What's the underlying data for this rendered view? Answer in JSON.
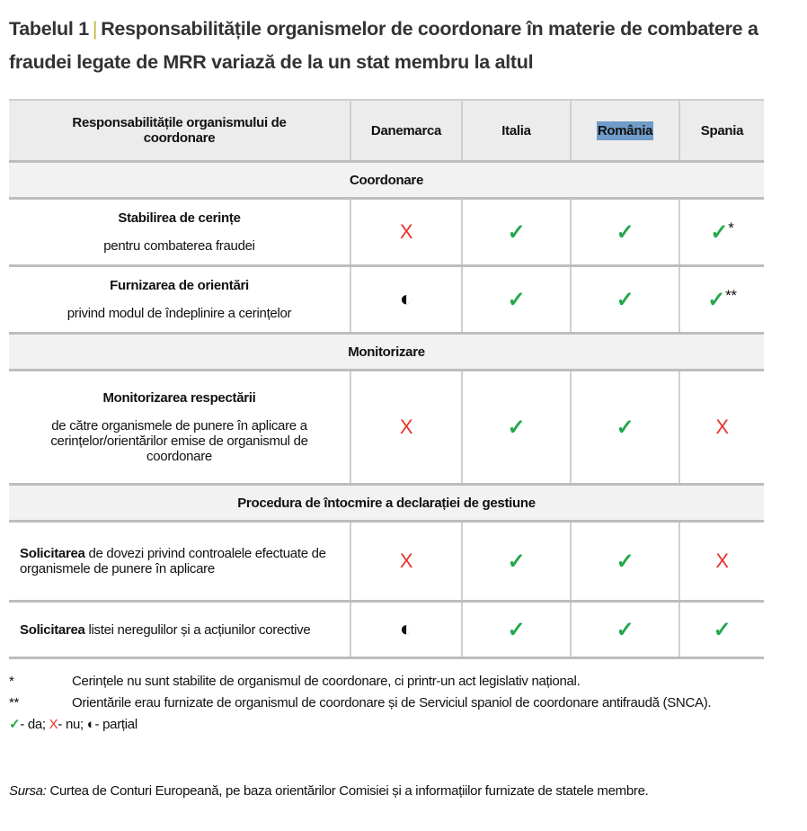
{
  "title": {
    "label": "Tabelul 1",
    "separator": "|",
    "text": "Responsabilitățile organismelor de coordonare în materie de combatere a fraudei legate de MRR variază de la un stat membru la altul"
  },
  "table": {
    "header": {
      "first": "Responsabilitățile organismului de coordonare",
      "countries": [
        "Danemarca",
        "Italia",
        "România",
        "Spania"
      ],
      "highlighted": "România"
    },
    "rows": [
      {
        "type": "section",
        "label": "Coordonare"
      },
      {
        "type": "row",
        "align": "center",
        "bold": "Stabilirea de cerințe",
        "rest": "pentru combaterea fraudei",
        "marks": [
          {
            "v": "no"
          },
          {
            "v": "yes"
          },
          {
            "v": "yes"
          },
          {
            "v": "yes",
            "suffix": "*"
          }
        ]
      },
      {
        "type": "row",
        "align": "center",
        "bold": "Furnizarea de orientări",
        "rest": "privind modul de îndeplinire a cerințelor",
        "marks": [
          {
            "v": "partial"
          },
          {
            "v": "yes"
          },
          {
            "v": "yes"
          },
          {
            "v": "yes",
            "suffix": "**"
          }
        ]
      },
      {
        "type": "section",
        "label": "Monitorizare"
      },
      {
        "type": "row",
        "align": "center",
        "bold": "Monitorizarea respectării",
        "rest": "de către organismele de punere în aplicare a cerințelor/orientărilor emise de organismul de coordonare",
        "marks": [
          {
            "v": "no"
          },
          {
            "v": "yes"
          },
          {
            "v": "yes"
          },
          {
            "v": "no"
          }
        ]
      },
      {
        "type": "section",
        "label": "Procedura de întocmire a declarației de gestiune"
      },
      {
        "type": "row",
        "align": "left",
        "bold": "Solicitarea",
        "rest": " de dovezi privind controalele efectuate de organismele de punere în aplicare",
        "marks": [
          {
            "v": "no"
          },
          {
            "v": "yes"
          },
          {
            "v": "yes"
          },
          {
            "v": "no"
          }
        ]
      },
      {
        "type": "row",
        "align": "left",
        "bold": "Solicitarea",
        "rest": " listei neregulilor și a acțiunilor corective",
        "marks": [
          {
            "v": "partial"
          },
          {
            "v": "yes"
          },
          {
            "v": "yes"
          },
          {
            "v": "yes"
          }
        ]
      }
    ]
  },
  "symbols": {
    "yes": "✓",
    "no": "X",
    "partial": "◐"
  },
  "colors": {
    "yes": "#22a84a",
    "no": "#e8332d",
    "highlight": "#6f9cc8",
    "title_separator": "#c9b43c"
  },
  "footnotes": [
    {
      "key": "*",
      "text": "Cerințele nu sunt stabilite de organismul de coordonare, ci printr-un act legislativ național."
    },
    {
      "key": "**",
      "text": "Orientările erau furnizate de organismul de coordonare și de Serviciul spaniol de coordonare antifraudă (SNCA)."
    }
  ],
  "legend": {
    "yes": "- da;",
    "no": "- nu;",
    "partial": "- parțial"
  },
  "source": {
    "label": "Sursa:",
    "text": "Curtea de Conturi Europeană, pe baza orientărilor Comisiei și a informațiilor furnizate de statele membre."
  }
}
